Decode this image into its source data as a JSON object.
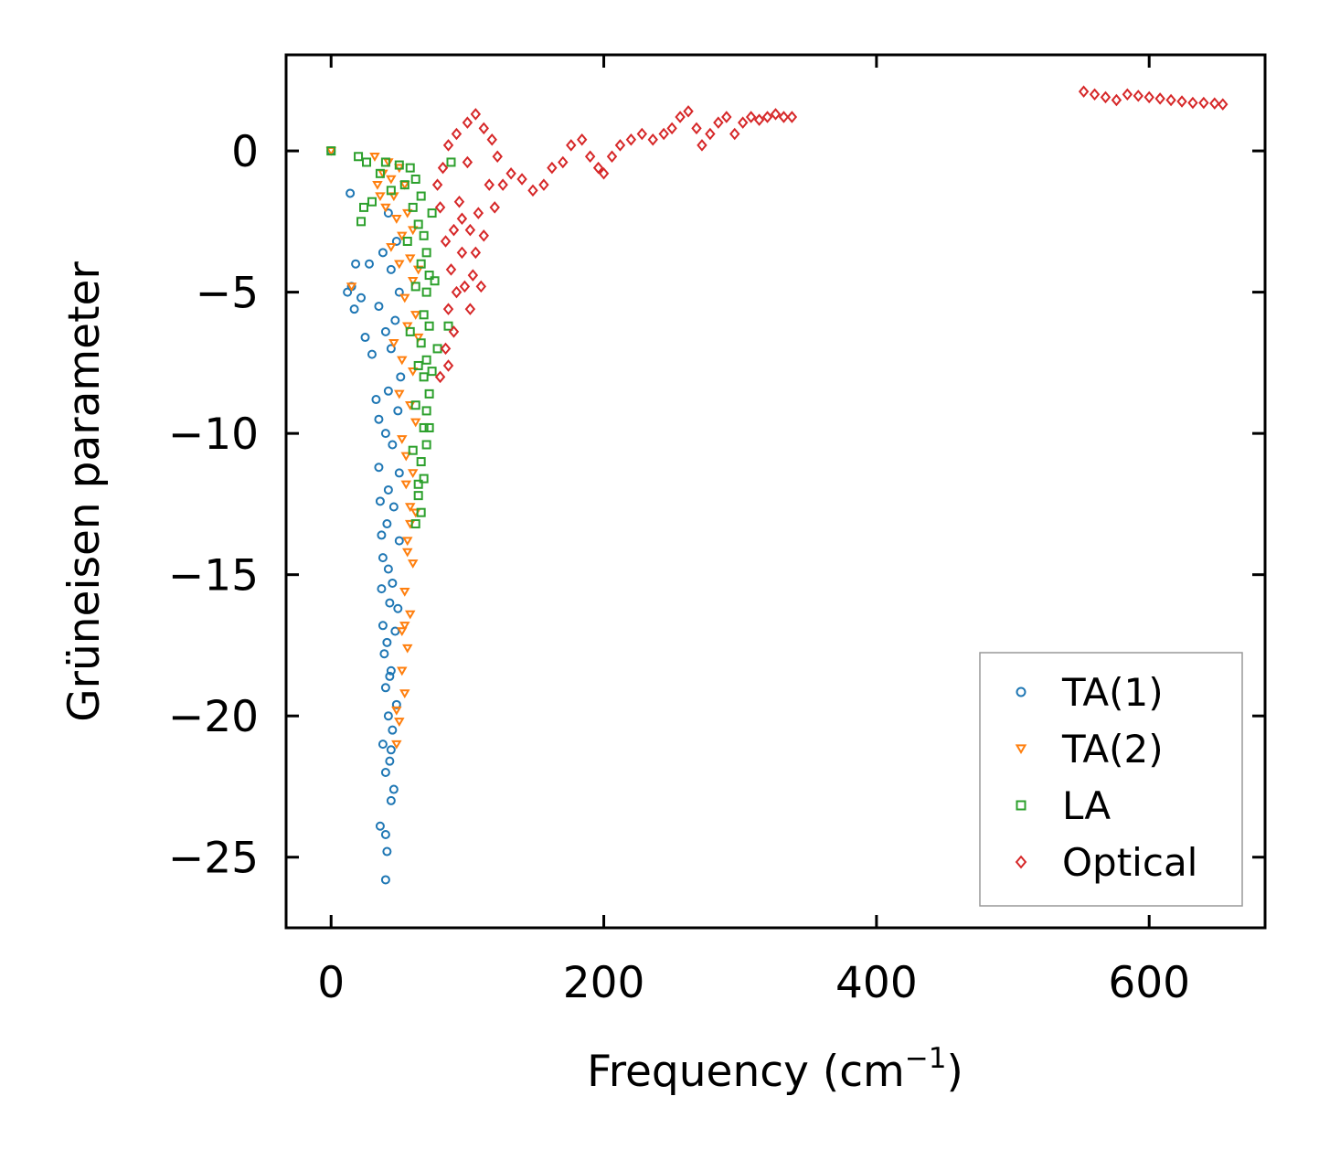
{
  "chart_data": {
    "type": "scatter",
    "xlabel": "Frequency (cm",
    "xlabel_sup": "−1",
    "xlabel_close": ")",
    "ylabel": "Grüneisen parameter",
    "xlim": [
      -33,
      685
    ],
    "ylim": [
      -27.5,
      3.4
    ],
    "xticks": [
      0,
      200,
      400,
      600
    ],
    "xtick_labels": [
      "0",
      "200",
      "400",
      "600"
    ],
    "yticks": [
      0,
      -5,
      -10,
      -15,
      -20,
      -25
    ],
    "ytick_labels": [
      "0",
      "−5",
      "−10",
      "−15",
      "−20",
      "−25"
    ],
    "legend_position": "lower-right",
    "series": [
      {
        "name": "TA(1)",
        "marker": "circle",
        "color": "#1f77b4",
        "points": [
          [
            0,
            0
          ],
          [
            14,
            -1.5
          ],
          [
            18,
            -4
          ],
          [
            15,
            -4.8
          ],
          [
            12,
            -5.0
          ],
          [
            17,
            -5.6
          ],
          [
            22,
            -5.2
          ],
          [
            28,
            -4.0
          ],
          [
            25,
            -6.6
          ],
          [
            30,
            -7.2
          ],
          [
            33,
            -8.8
          ],
          [
            35,
            -9.5
          ],
          [
            35,
            -11.2
          ],
          [
            36,
            -12.4
          ],
          [
            37,
            -13.6
          ],
          [
            38,
            -14.4
          ],
          [
            37,
            -15.5
          ],
          [
            38,
            -16.8
          ],
          [
            39,
            -17.8
          ],
          [
            40,
            -19.0
          ],
          [
            38,
            -21.0
          ],
          [
            40,
            -22.0
          ],
          [
            36,
            -23.9
          ],
          [
            40,
            -24.2
          ],
          [
            41,
            -24.8
          ],
          [
            40,
            -25.8
          ],
          [
            46,
            -22.6
          ],
          [
            44,
            -21.2
          ],
          [
            45,
            -20.5
          ],
          [
            48,
            -19.6
          ],
          [
            44,
            -18.4
          ],
          [
            47,
            -17.0
          ],
          [
            49,
            -16.2
          ],
          [
            45,
            -15.3
          ],
          [
            50,
            -13.8
          ],
          [
            46,
            -12.6
          ],
          [
            50,
            -11.4
          ],
          [
            45,
            -10.4
          ],
          [
            49,
            -9.2
          ],
          [
            51,
            -8.0
          ],
          [
            44,
            -7.0
          ],
          [
            47,
            -6.0
          ],
          [
            50,
            -5.0
          ],
          [
            44,
            -4.2
          ],
          [
            48,
            -3.2
          ],
          [
            42,
            -2.2
          ],
          [
            38,
            -3.6
          ],
          [
            35,
            -5.5
          ],
          [
            40,
            -6.4
          ],
          [
            42,
            -8.5
          ],
          [
            40,
            -10.0
          ],
          [
            42,
            -12.0
          ],
          [
            41,
            -13.2
          ],
          [
            42,
            -14.8
          ],
          [
            43,
            -16.0
          ],
          [
            41,
            -17.4
          ],
          [
            43,
            -18.6
          ],
          [
            42,
            -20.0
          ],
          [
            43,
            -21.6
          ],
          [
            44,
            -23.0
          ]
        ]
      },
      {
        "name": "TA(2)",
        "marker": "triangle-down",
        "color": "#ff7f0e",
        "points": [
          [
            0,
            0
          ],
          [
            32,
            -0.2
          ],
          [
            38,
            -0.8
          ],
          [
            34,
            -1.2
          ],
          [
            42,
            -0.4
          ],
          [
            46,
            -1.6
          ],
          [
            50,
            -0.6
          ],
          [
            40,
            -2.0
          ],
          [
            54,
            -1.2
          ],
          [
            48,
            -2.4
          ],
          [
            52,
            -3.0
          ],
          [
            56,
            -2.2
          ],
          [
            50,
            -4.0
          ],
          [
            58,
            -3.8
          ],
          [
            54,
            -5.2
          ],
          [
            60,
            -4.6
          ],
          [
            56,
            -6.2
          ],
          [
            62,
            -5.8
          ],
          [
            52,
            -7.4
          ],
          [
            60,
            -7.8
          ],
          [
            58,
            -9.0
          ],
          [
            62,
            -9.6
          ],
          [
            55,
            -10.8
          ],
          [
            60,
            -11.4
          ],
          [
            58,
            -12.6
          ],
          [
            62,
            -12.8
          ],
          [
            56,
            -13.8
          ],
          [
            60,
            -14.6
          ],
          [
            54,
            -15.6
          ],
          [
            58,
            -16.4
          ],
          [
            56,
            -17.6
          ],
          [
            52,
            -18.4
          ],
          [
            54,
            -19.2
          ],
          [
            50,
            -20.2
          ],
          [
            48,
            -21.0
          ],
          [
            15,
            -4.8
          ],
          [
            44,
            -3.4
          ],
          [
            46,
            -6.8
          ],
          [
            50,
            -8.6
          ],
          [
            52,
            -10.2
          ],
          [
            55,
            -11.8
          ],
          [
            58,
            -13.2
          ],
          [
            56,
            -14.2
          ],
          [
            54,
            -16.8
          ],
          [
            52,
            -17.0
          ],
          [
            48,
            -19.8
          ],
          [
            64,
            -6.6
          ],
          [
            64,
            -4.2
          ],
          [
            60,
            -2.8
          ],
          [
            44,
            -1.0
          ],
          [
            36,
            -1.6
          ]
        ]
      },
      {
        "name": "LA",
        "marker": "square",
        "color": "#2ca02c",
        "points": [
          [
            0,
            0
          ],
          [
            20,
            -0.2
          ],
          [
            26,
            -0.4
          ],
          [
            24,
            -2.0
          ],
          [
            22,
            -2.5
          ],
          [
            30,
            -1.8
          ],
          [
            36,
            -0.8
          ],
          [
            40,
            -0.4
          ],
          [
            44,
            -1.4
          ],
          [
            50,
            -0.5
          ],
          [
            54,
            -1.2
          ],
          [
            58,
            -0.6
          ],
          [
            62,
            -1.0
          ],
          [
            66,
            -1.6
          ],
          [
            60,
            -2.0
          ],
          [
            64,
            -2.6
          ],
          [
            68,
            -3.0
          ],
          [
            70,
            -3.6
          ],
          [
            66,
            -4.0
          ],
          [
            72,
            -4.4
          ],
          [
            70,
            -5.0
          ],
          [
            68,
            -5.8
          ],
          [
            72,
            -6.2
          ],
          [
            66,
            -6.8
          ],
          [
            70,
            -7.4
          ],
          [
            68,
            -8.0
          ],
          [
            72,
            -8.6
          ],
          [
            70,
            -9.2
          ],
          [
            68,
            -9.8
          ],
          [
            70,
            -10.4
          ],
          [
            66,
            -11.0
          ],
          [
            68,
            -11.6
          ],
          [
            64,
            -12.2
          ],
          [
            66,
            -12.8
          ],
          [
            62,
            -13.2
          ],
          [
            88,
            -0.4
          ],
          [
            86,
            -6.2
          ],
          [
            76,
            -4.6
          ],
          [
            78,
            -7.0
          ],
          [
            74,
            -2.2
          ],
          [
            56,
            -3.2
          ],
          [
            62,
            -4.8
          ],
          [
            58,
            -6.4
          ],
          [
            64,
            -7.6
          ],
          [
            62,
            -9.0
          ],
          [
            60,
            -10.6
          ],
          [
            64,
            -11.8
          ],
          [
            72,
            -9.8
          ],
          [
            74,
            -7.8
          ]
        ]
      },
      {
        "name": "Optical",
        "marker": "diamond",
        "color": "#d62728",
        "points": [
          [
            80,
            -8.0
          ],
          [
            84,
            -7.0
          ],
          [
            90,
            -6.4
          ],
          [
            86,
            -5.6
          ],
          [
            92,
            -5.0
          ],
          [
            98,
            -4.8
          ],
          [
            104,
            -4.4
          ],
          [
            110,
            -4.8
          ],
          [
            106,
            -3.6
          ],
          [
            112,
            -3.0
          ],
          [
            102,
            -2.8
          ],
          [
            96,
            -2.4
          ],
          [
            90,
            -2.8
          ],
          [
            84,
            -3.2
          ],
          [
            80,
            -2.0
          ],
          [
            78,
            -1.2
          ],
          [
            82,
            -0.6
          ],
          [
            86,
            0.2
          ],
          [
            92,
            0.6
          ],
          [
            100,
            1.0
          ],
          [
            106,
            1.3
          ],
          [
            112,
            0.8
          ],
          [
            118,
            0.4
          ],
          [
            122,
            -0.2
          ],
          [
            116,
            -1.2
          ],
          [
            120,
            -2.0
          ],
          [
            126,
            -1.2
          ],
          [
            132,
            -0.8
          ],
          [
            140,
            -1.0
          ],
          [
            148,
            -1.4
          ],
          [
            156,
            -1.2
          ],
          [
            162,
            -0.6
          ],
          [
            170,
            -0.4
          ],
          [
            176,
            0.2
          ],
          [
            184,
            0.4
          ],
          [
            190,
            -0.2
          ],
          [
            196,
            -0.6
          ],
          [
            200,
            -0.8
          ],
          [
            206,
            -0.2
          ],
          [
            212,
            0.2
          ],
          [
            220,
            0.4
          ],
          [
            228,
            0.6
          ],
          [
            236,
            0.4
          ],
          [
            244,
            0.6
          ],
          [
            250,
            0.8
          ],
          [
            256,
            1.2
          ],
          [
            262,
            1.4
          ],
          [
            268,
            0.8
          ],
          [
            272,
            0.2
          ],
          [
            278,
            0.6
          ],
          [
            284,
            1.0
          ],
          [
            290,
            1.2
          ],
          [
            296,
            0.6
          ],
          [
            302,
            1.0
          ],
          [
            308,
            1.2
          ],
          [
            314,
            1.1
          ],
          [
            320,
            1.2
          ],
          [
            326,
            1.3
          ],
          [
            332,
            1.2
          ],
          [
            338,
            1.2
          ],
          [
            94,
            -1.8
          ],
          [
            100,
            -0.4
          ],
          [
            108,
            -2.2
          ],
          [
            96,
            -3.6
          ],
          [
            88,
            -4.2
          ],
          [
            102,
            -5.6
          ],
          [
            86,
            -7.6
          ],
          [
            552,
            2.1
          ],
          [
            560,
            2.0
          ],
          [
            568,
            1.9
          ],
          [
            576,
            1.8
          ],
          [
            584,
            2.0
          ],
          [
            592,
            1.95
          ],
          [
            600,
            1.9
          ],
          [
            608,
            1.85
          ],
          [
            616,
            1.8
          ],
          [
            624,
            1.75
          ],
          [
            632,
            1.7
          ],
          [
            640,
            1.7
          ],
          [
            648,
            1.68
          ],
          [
            654,
            1.65
          ]
        ]
      }
    ]
  }
}
